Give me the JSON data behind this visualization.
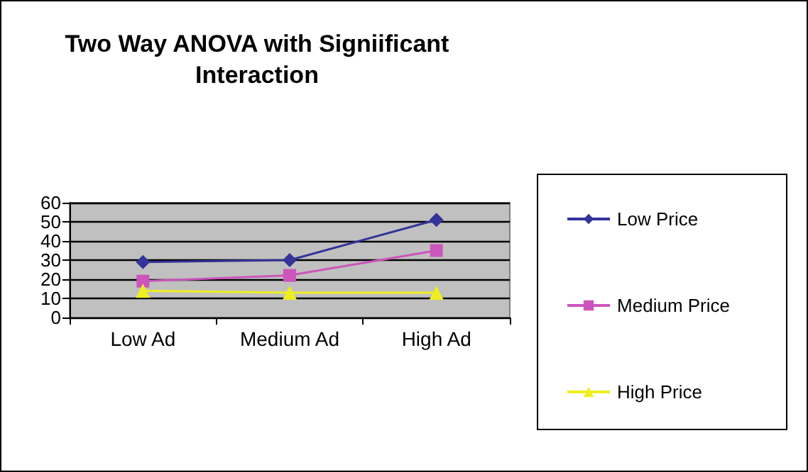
{
  "chart_data": {
    "type": "line",
    "title": "Two Way ANOVA with Signiificant\nInteraction",
    "categories": [
      "Low Ad",
      "Medium Ad",
      "High Ad"
    ],
    "series": [
      {
        "name": "Low Price",
        "color": "#333399",
        "values": [
          29,
          30,
          51
        ],
        "marker": "diamond"
      },
      {
        "name": "Medium Price",
        "color": "#cc55bb",
        "values": [
          19,
          22,
          35
        ],
        "marker": "square"
      },
      {
        "name": "High Price",
        "color": "#eeee22",
        "values": [
          14,
          13,
          13
        ],
        "marker": "triangle"
      }
    ],
    "ylim": [
      0,
      60
    ],
    "yticks": [
      0,
      10,
      20,
      30,
      40,
      50,
      60
    ],
    "grid": "y",
    "legend": "right"
  }
}
